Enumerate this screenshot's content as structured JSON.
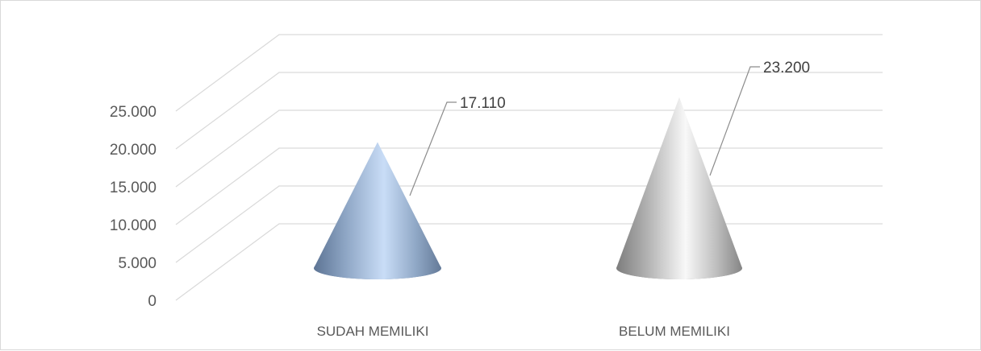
{
  "chart_data": {
    "type": "bar",
    "shape": "cone-3d",
    "categories": [
      "SUDAH MEMILIKI",
      "BELUM MEMILIKI"
    ],
    "values": [
      17110,
      23200
    ],
    "data_labels": [
      "17.110",
      "23.200"
    ],
    "y_ticks": [
      "0",
      "5.000",
      "10.000",
      "15.000",
      "20.000",
      "25.000"
    ],
    "ylim": [
      0,
      25000
    ],
    "grid": true,
    "legend": "none",
    "title": "",
    "xlabel": "",
    "ylabel": "",
    "colors": {
      "sudah": "#9db8d8",
      "belum": "#c8c8c8",
      "grid": "#d9d9d9",
      "text": "#595959"
    }
  }
}
